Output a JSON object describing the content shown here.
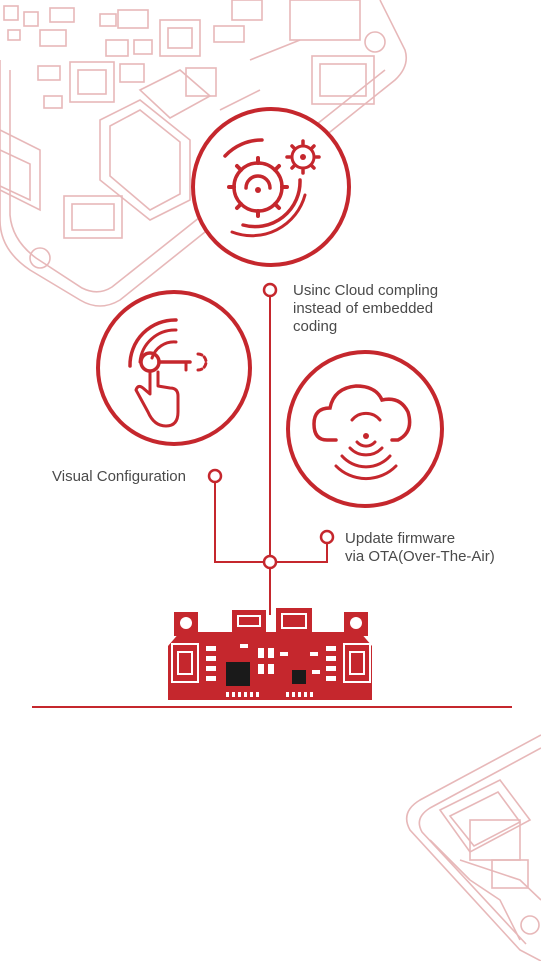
{
  "colors": {
    "accent": "#c5272d",
    "decor": "#e7b8b9",
    "text": "#4a4a4a",
    "background": "#ffffff"
  },
  "features": [
    {
      "id": "cloud-compiling",
      "icon": "gears-icon",
      "label": "Usinc Cloud compling\ninstead of embedded\ncoding"
    },
    {
      "id": "visual-config",
      "icon": "hand-pointer-icon",
      "label": "Visual Configuration"
    },
    {
      "id": "ota-update",
      "icon": "cloud-wireless-icon",
      "label": "Update firmware\nvia OTA(Over-The-Air)"
    }
  ],
  "device": {
    "icon": "circuit-board-icon"
  }
}
